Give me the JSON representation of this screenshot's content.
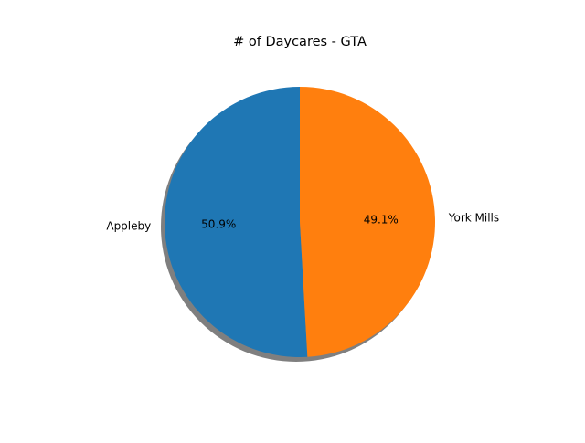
{
  "chart_data": {
    "type": "pie",
    "title": "# of Daycares - GTA",
    "labels": [
      "Appleby",
      "York Mills"
    ],
    "values": [
      50.9,
      49.1
    ],
    "percent_labels": [
      "50.9%",
      "49.1%"
    ],
    "colors": [
      "#1f77b4",
      "#ff7f0e"
    ],
    "shadow": true,
    "start": "top, counterclockwise"
  }
}
